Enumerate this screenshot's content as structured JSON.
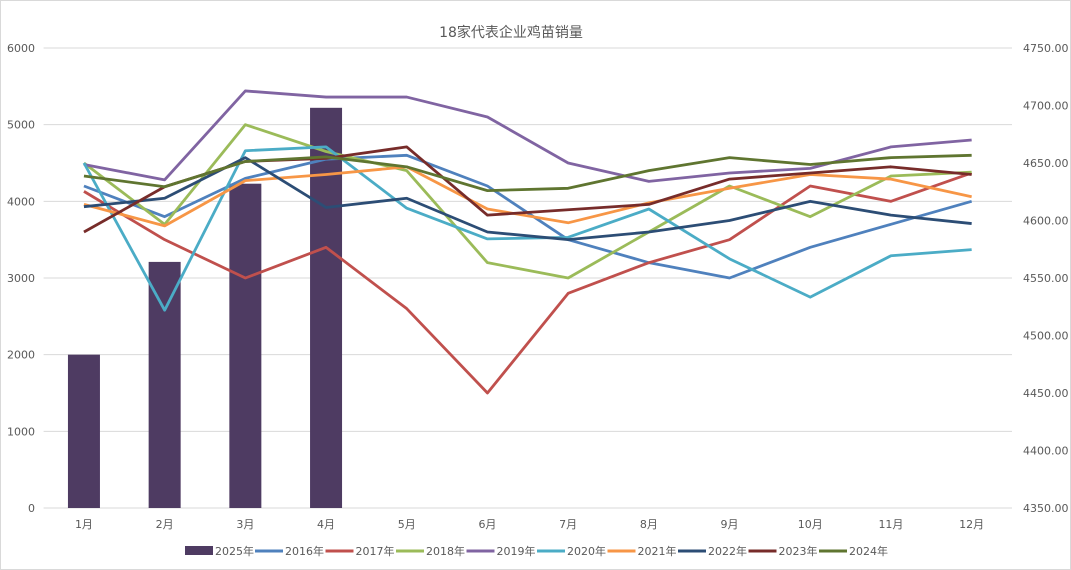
{
  "chart_data": {
    "type": "bar+line",
    "title": "18家代表企业鸡苗销量",
    "categories": [
      "1月",
      "2月",
      "3月",
      "4月",
      "5月",
      "6月",
      "7月",
      "8月",
      "9月",
      "10月",
      "11月",
      "12月"
    ],
    "ylim": [
      0,
      6000
    ],
    "yticks": [
      0,
      1000,
      2000,
      3000,
      4000,
      5000,
      6000
    ],
    "y2lim": [
      4350,
      4750
    ],
    "y2ticks": [
      "4350.00",
      "4400.00",
      "4450.00",
      "4500.00",
      "4550.00",
      "4600.00",
      "4650.00",
      "4700.00",
      "4750.00"
    ],
    "grid": true,
    "legend": "bottom",
    "bars": {
      "name": "2025年",
      "color": "#4e3b62",
      "values": [
        2000,
        3210,
        4230,
        5220
      ]
    },
    "series": [
      {
        "name": "2016年",
        "color": "#4f81bd",
        "values": [
          4200,
          3800,
          4300,
          4550,
          4600,
          4200,
          3500,
          3200,
          3000,
          3400,
          3700,
          4000
        ]
      },
      {
        "name": "2017年",
        "color": "#c0504d",
        "values": [
          4130,
          3500,
          3000,
          3400,
          2600,
          1500,
          2800,
          3200,
          3500,
          4200,
          4000,
          4370
        ]
      },
      {
        "name": "2018年",
        "color": "#9bbb59",
        "values": [
          4500,
          3700,
          5000,
          4650,
          4400,
          3200,
          3000,
          3600,
          4200,
          3800,
          4330,
          4380
        ]
      },
      {
        "name": "2019年",
        "color": "#8064a2",
        "values": [
          4480,
          4280,
          5440,
          5360,
          5360,
          5100,
          4500,
          4260,
          4370,
          4430,
          4710,
          4800
        ]
      },
      {
        "name": "2020年",
        "color": "#4bacc6",
        "values": [
          4500,
          2580,
          4660,
          4710,
          3910,
          3510,
          3530,
          3900,
          3250,
          2750,
          3290,
          3370
        ]
      },
      {
        "name": "2021年",
        "color": "#f79646",
        "values": [
          3960,
          3680,
          4270,
          4350,
          4450,
          3900,
          3720,
          3980,
          4170,
          4350,
          4290,
          4060
        ]
      },
      {
        "name": "2022年",
        "color": "#2c4d75",
        "values": [
          3930,
          4040,
          4570,
          3920,
          4040,
          3600,
          3500,
          3600,
          3750,
          4000,
          3820,
          3710
        ]
      },
      {
        "name": "2023年",
        "color": "#772c2a",
        "values": [
          3600,
          4190,
          4520,
          4560,
          4710,
          3820,
          3890,
          3960,
          4290,
          4370,
          4450,
          4350
        ]
      },
      {
        "name": "2024年",
        "color": "#5f7530",
        "values": [
          4330,
          4190,
          4520,
          4580,
          4450,
          4140,
          4170,
          4400,
          4570,
          4480,
          4570,
          4600
        ]
      }
    ]
  }
}
